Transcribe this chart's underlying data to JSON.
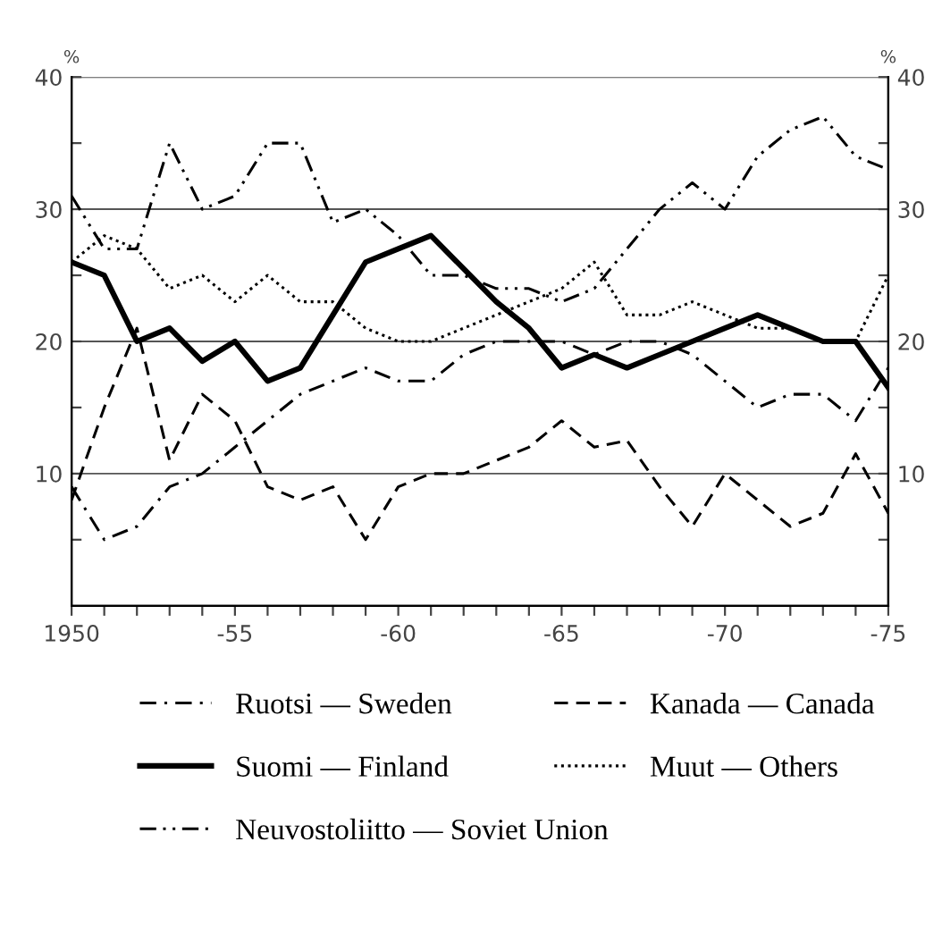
{
  "chart_data": {
    "type": "line",
    "categories": [
      "1950",
      null,
      null,
      null,
      null,
      "-55",
      null,
      null,
      null,
      null,
      "-60",
      null,
      null,
      null,
      null,
      "-65",
      null,
      null,
      null,
      null,
      "-70",
      null,
      null,
      null,
      null,
      "-75"
    ],
    "series": [
      {
        "name": "Ruotsi — Sweden",
        "color": "#000000",
        "line_style": "dashdot",
        "values": [
          9,
          5,
          6,
          9,
          10,
          12,
          14,
          16,
          17,
          18,
          17,
          17,
          19,
          20,
          20,
          20,
          19,
          20,
          20,
          19,
          17,
          15,
          16,
          16,
          14,
          18
        ]
      },
      {
        "name": "Suomi — Finland",
        "color": "#000000",
        "line_style": "solid",
        "values": [
          26,
          25,
          20,
          21,
          18.5,
          20,
          17,
          18,
          22,
          26,
          27,
          28,
          25.5,
          23,
          21,
          18,
          19,
          18,
          19,
          20,
          21,
          22,
          21,
          20,
          20,
          16.5
        ]
      },
      {
        "name": "Neuvostoliitto — Soviet Union",
        "color": "#000000",
        "line_style": "dashdotdot",
        "values": [
          31,
          27,
          27,
          35,
          30,
          31,
          35,
          35,
          29,
          30,
          28,
          25,
          25,
          24,
          24,
          23,
          24,
          27,
          30,
          32,
          30,
          34,
          36,
          37,
          34,
          33
        ]
      },
      {
        "name": "Kanada — Canada",
        "color": "#000000",
        "line_style": "dashed",
        "values": [
          8,
          15,
          21,
          11,
          16,
          14,
          9,
          8,
          9,
          5,
          9,
          10,
          10,
          11,
          12,
          14,
          12,
          12.5,
          9,
          6,
          10,
          8,
          6,
          7,
          11.5,
          7
        ]
      },
      {
        "name": "Muut — Others",
        "color": "#000000",
        "line_style": "dotted",
        "values": [
          26,
          28,
          27,
          24,
          25,
          23,
          25,
          23,
          23,
          21,
          20,
          20,
          21,
          22,
          23,
          24,
          26,
          22,
          22,
          23,
          22,
          21,
          21,
          20,
          20,
          25
        ]
      }
    ],
    "ylabel": "%",
    "y2label": "%",
    "ylim": [
      0,
      40
    ],
    "yticks": [
      {
        "value": 5,
        "label": null
      },
      10,
      {
        "value": 15,
        "label": null
      },
      20,
      {
        "value": 25,
        "label": null
      },
      30,
      {
        "value": 35,
        "label": null
      },
      40
    ],
    "y2lim": [
      0,
      40
    ],
    "y2ticks": [
      {
        "value": 5,
        "label": null
      },
      10,
      {
        "value": 15,
        "label": null
      },
      20,
      {
        "value": 25,
        "label": null
      },
      30,
      {
        "value": 35,
        "label": null
      },
      40
    ],
    "grid": "y",
    "legend": "bottom",
    "marker": "none"
  }
}
